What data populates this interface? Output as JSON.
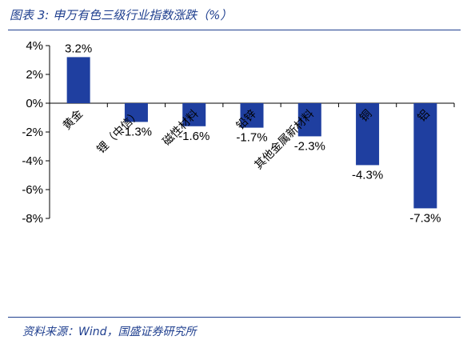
{
  "header": {
    "title": "图表 3:  申万有色三级行业指数涨跌（%）"
  },
  "footer": {
    "source": "资料来源：Wind，国盛证券研究所"
  },
  "colors": {
    "bar": "#1f3fa0",
    "accent": "#1f3f8f"
  },
  "chart_data": {
    "type": "bar",
    "title": "申万有色三级行业指数涨跌（%）",
    "categories": [
      "黄金",
      "锂（中信）",
      "磁性材料",
      "铅锌",
      "其他金属新材料",
      "铜",
      "铝"
    ],
    "values": [
      3.2,
      -1.3,
      -1.6,
      -1.7,
      -2.3,
      -4.3,
      -7.3
    ],
    "data_labels": [
      "3.2%",
      "-1.3%",
      "-1.6%",
      "-1.7%",
      "-2.3%",
      "-4.3%",
      "-7.3%"
    ],
    "ylim": [
      -8,
      4
    ],
    "yticks": [
      4,
      2,
      0,
      -2,
      -4,
      -6,
      -8
    ],
    "ytick_labels": [
      "4%",
      "2%",
      "0%",
      "-2%",
      "-4%",
      "-6%",
      "-8%"
    ],
    "xlabel": "",
    "ylabel": "",
    "grid": false,
    "legend": "none"
  }
}
